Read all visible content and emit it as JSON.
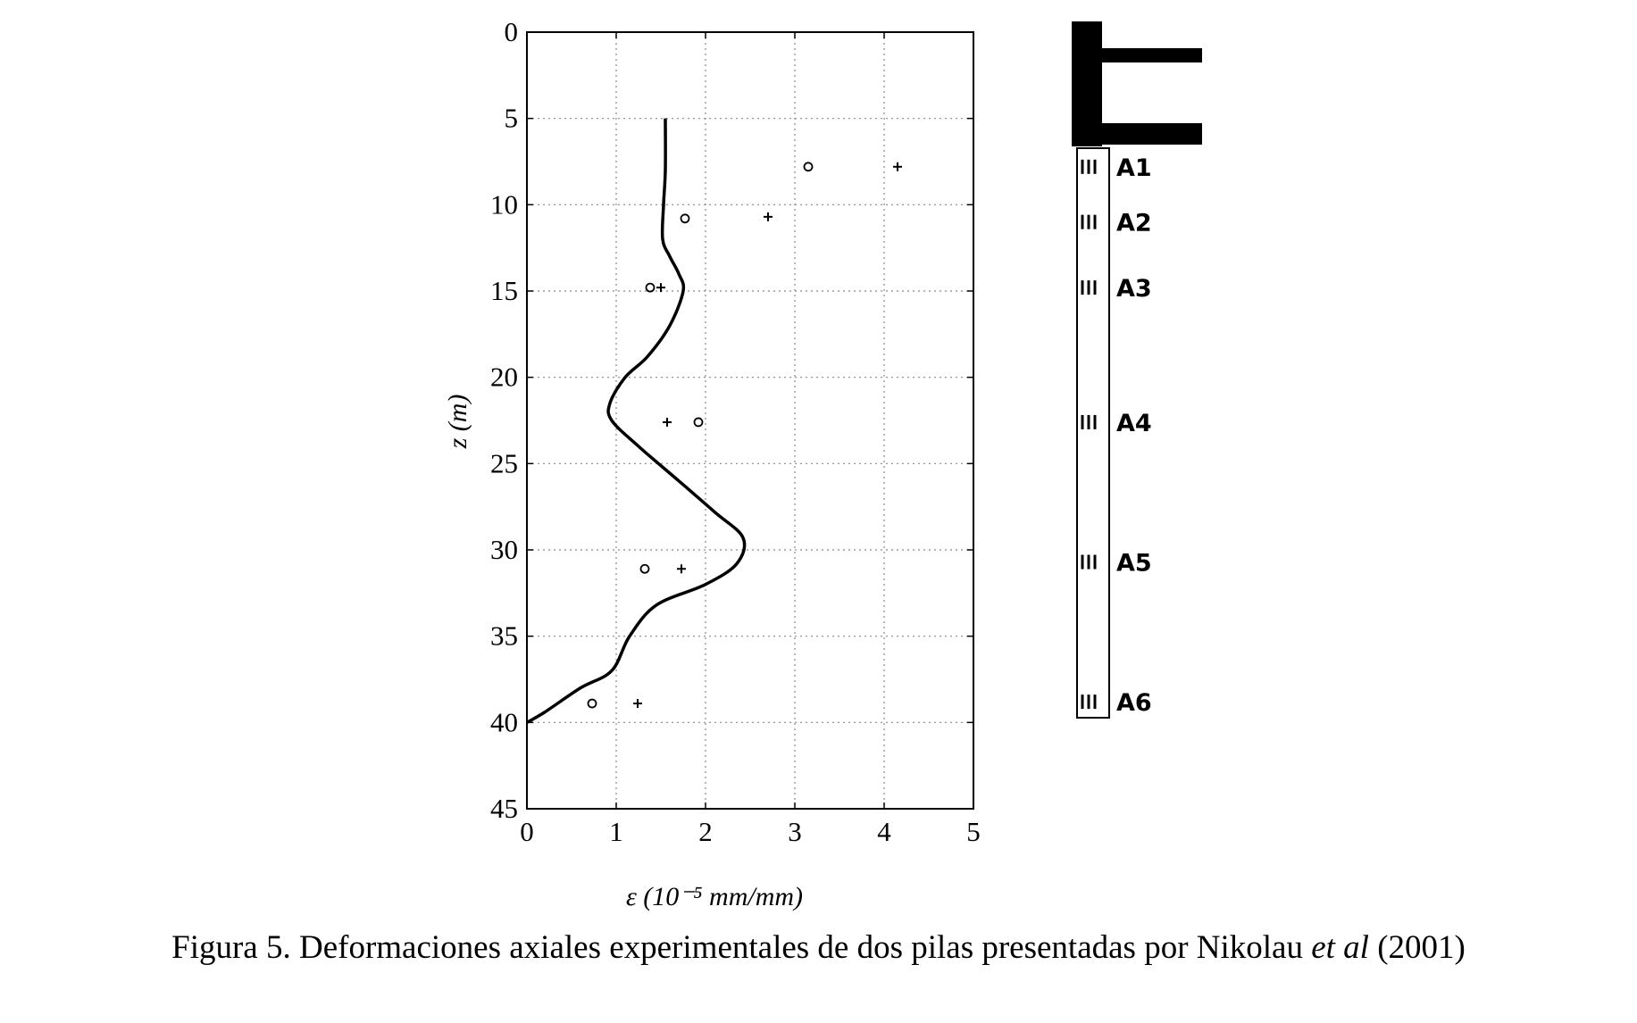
{
  "chart_data": {
    "type": "line",
    "title": "",
    "xlabel": "ε  (10⁻⁵ mm/mm)",
    "ylabel": "z (m)",
    "xlim": [
      0,
      5
    ],
    "ylim": [
      0,
      45
    ],
    "y_inverted": true,
    "grid": true,
    "x_ticks": [
      "0",
      "1",
      "2",
      "3",
      "4",
      "5"
    ],
    "y_ticks": [
      "0",
      "5",
      "10",
      "15",
      "20",
      "25",
      "30",
      "35",
      "40",
      "45"
    ],
    "series": [
      {
        "style": "solid-line",
        "points": [
          [
            1.55,
            5
          ],
          [
            1.55,
            8
          ],
          [
            1.53,
            10
          ],
          [
            1.52,
            12
          ],
          [
            1.6,
            13
          ],
          [
            1.7,
            14
          ],
          [
            1.75,
            15
          ],
          [
            1.6,
            17
          ],
          [
            1.35,
            18.8
          ],
          [
            1.1,
            20
          ],
          [
            0.93,
            21.5
          ],
          [
            0.95,
            22.5
          ],
          [
            1.25,
            24
          ],
          [
            1.7,
            26
          ],
          [
            2.1,
            27.8
          ],
          [
            2.42,
            29.3
          ],
          [
            2.35,
            30.8
          ],
          [
            2.0,
            32
          ],
          [
            1.45,
            33.2
          ],
          [
            1.15,
            35
          ],
          [
            0.95,
            37
          ],
          [
            0.6,
            38
          ],
          [
            0.2,
            39.4
          ],
          [
            0.0,
            40
          ]
        ]
      },
      {
        "style": "circle-markers",
        "points": [
          [
            3.15,
            7.8
          ],
          [
            1.77,
            10.8
          ],
          [
            1.38,
            14.8
          ],
          [
            1.92,
            22.6
          ],
          [
            1.32,
            31.1
          ],
          [
            0.73,
            38.9
          ]
        ]
      },
      {
        "style": "plus-markers",
        "points": [
          [
            4.15,
            7.8
          ],
          [
            2.7,
            10.7
          ],
          [
            1.5,
            14.8
          ],
          [
            1.57,
            22.6
          ],
          [
            1.73,
            31.1
          ],
          [
            1.24,
            38.9
          ]
        ]
      }
    ]
  },
  "pile": {
    "gauges": [
      {
        "label": "A1",
        "z": 7.8
      },
      {
        "label": "A2",
        "z": 11.0
      },
      {
        "label": "A3",
        "z": 14.8
      },
      {
        "label": "A4",
        "z": 22.6
      },
      {
        "label": "A5",
        "z": 30.7
      },
      {
        "label": "A6",
        "z": 38.8
      }
    ]
  },
  "caption": {
    "prefix": "Figura 5. Deformaciones axiales experimentales de dos pilas presentadas por Nikolau ",
    "italic": "et al",
    "suffix": " (2001)"
  }
}
